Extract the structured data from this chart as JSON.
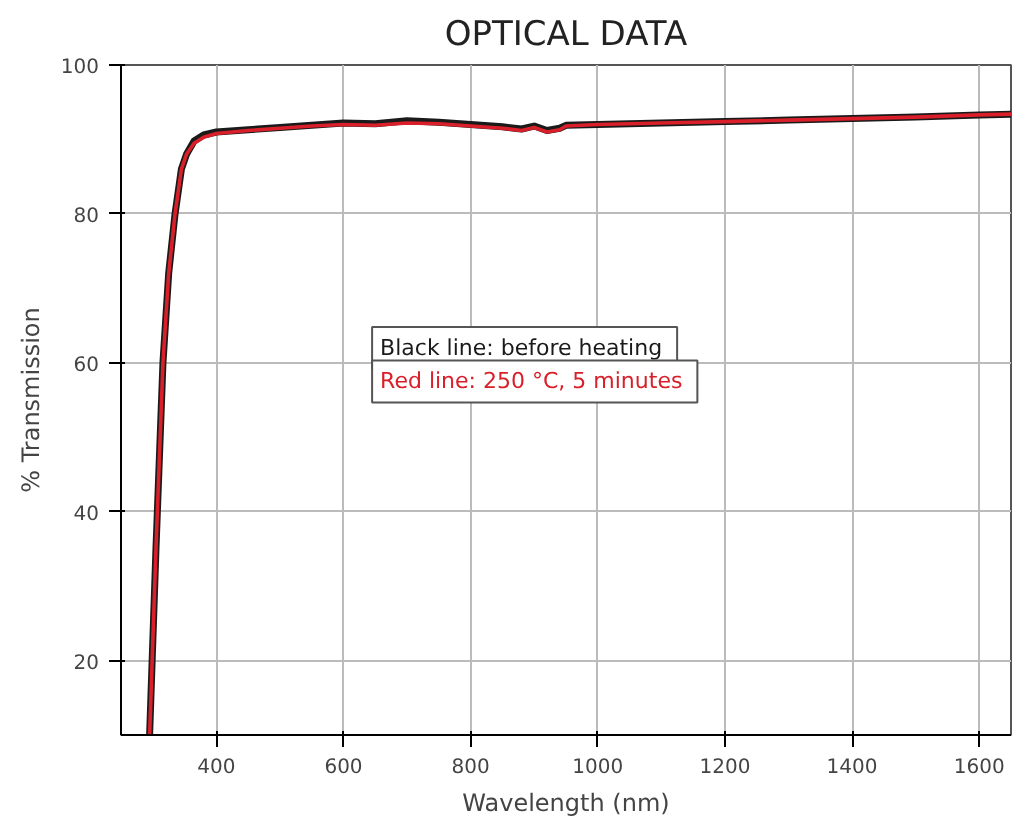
{
  "chart_data": {
    "type": "line",
    "title": "OPTICAL DATA",
    "xlabel": "Wavelength (nm)",
    "ylabel": "% Transmission",
    "xlim": [
      250,
      1650
    ],
    "ylim": [
      10,
      100
    ],
    "xticks": [
      400,
      600,
      800,
      1000,
      1200,
      1400,
      1600
    ],
    "yticks": [
      20,
      40,
      60,
      80,
      100
    ],
    "grid": true,
    "legend": "center",
    "line_style": "solid",
    "series": [
      {
        "name": "Black line:  before heating",
        "color": "#1a1a1a",
        "x": [
          295,
          305,
          316,
          325,
          335,
          345,
          353,
          365,
          380,
          400,
          450,
          500,
          550,
          600,
          650,
          700,
          750,
          800,
          850,
          880,
          900,
          920,
          940,
          950,
          1000,
          1100,
          1200,
          1300,
          1400,
          1500,
          1600,
          1650
        ],
        "values": [
          10,
          35,
          60,
          72,
          80,
          86,
          88,
          89.8,
          90.6,
          91,
          91.3,
          91.6,
          91.9,
          92.2,
          92.1,
          92.5,
          92.3,
          92,
          91.7,
          91.4,
          91.8,
          91.2,
          91.5,
          91.9,
          92,
          92.2,
          92.4,
          92.6,
          92.8,
          93,
          93.3,
          93.4
        ]
      },
      {
        "name": "Red line:  250 °C, 5 minutes",
        "color": "#d9202a",
        "x": [
          295,
          305,
          316,
          325,
          335,
          345,
          353,
          365,
          380,
          400,
          450,
          500,
          550,
          600,
          650,
          700,
          750,
          800,
          850,
          880,
          900,
          920,
          940,
          950,
          1000,
          1100,
          1200,
          1300,
          1400,
          1500,
          1600,
          1650
        ],
        "values": [
          10,
          35,
          60,
          72,
          80,
          86,
          88,
          89.5,
          90.3,
          90.8,
          91.2,
          91.5,
          91.8,
          92,
          91.9,
          92.2,
          92.1,
          91.8,
          91.5,
          91.2,
          91.6,
          91,
          91.3,
          91.8,
          92,
          92.2,
          92.4,
          92.6,
          92.8,
          93,
          93.3,
          93.4
        ]
      }
    ]
  }
}
